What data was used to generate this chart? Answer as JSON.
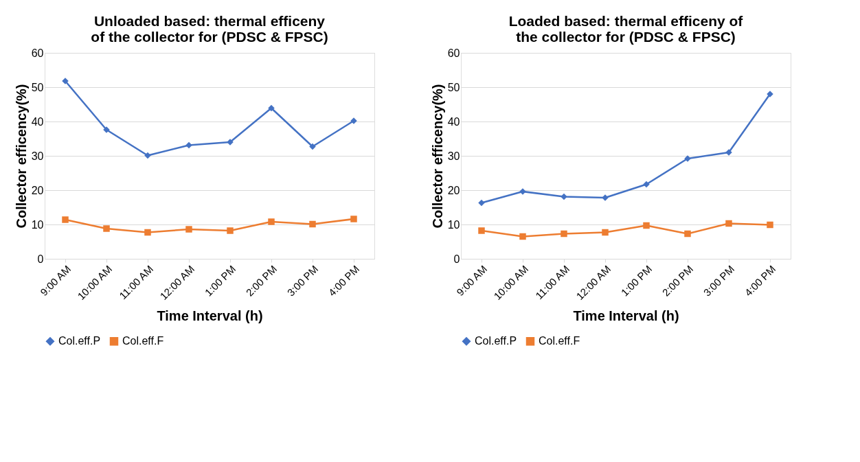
{
  "chart_data": [
    {
      "type": "line",
      "title": "Unloaded based: thermal efficeny of the collector for (PDSC & FPSC)",
      "xlabel": "Time Interval (h)",
      "ylabel": "Collector  efficency(%)",
      "categories": [
        "9:00 AM",
        "10:00 AM",
        "11:00 AM",
        "12:00 AM",
        "1:00 PM",
        "2:00 PM",
        "3:00 PM",
        "4:00 PM"
      ],
      "series": [
        {
          "name": "Col.eff.P",
          "color": "#4472c4",
          "marker": "diamond",
          "values": [
            51.8,
            37.6,
            30.1,
            33.1,
            34.0,
            43.9,
            32.7,
            40.2
          ]
        },
        {
          "name": "Col.eff.F",
          "color": "#ed7d31",
          "marker": "square",
          "values": [
            11.4,
            8.8,
            7.7,
            8.6,
            8.2,
            10.8,
            10.1,
            11.6
          ]
        }
      ],
      "ylim": [
        0,
        60
      ],
      "yticks": [
        0,
        10,
        20,
        30,
        40,
        50,
        60
      ],
      "grid": "y",
      "legend": "bottom",
      "line_style": "solid"
    },
    {
      "type": "line",
      "title": "Loaded based:  thermal efficeny of the collector for (PDSC & FPSC)",
      "xlabel": "Time Interval (h)",
      "ylabel": "Collector  efficency(%)",
      "categories": [
        "9:00 AM",
        "10:00 AM",
        "11:00 AM",
        "12:00 AM",
        "1:00 PM",
        "2:00 PM",
        "3:00 PM",
        "4:00 PM"
      ],
      "series": [
        {
          "name": "Col.eff.P",
          "color": "#4472c4",
          "marker": "diamond",
          "values": [
            16.3,
            19.6,
            18.1,
            17.8,
            21.7,
            29.2,
            31.0,
            48.0
          ]
        },
        {
          "name": "Col.eff.F",
          "color": "#ed7d31",
          "marker": "square",
          "values": [
            8.2,
            6.5,
            7.3,
            7.7,
            9.7,
            7.3,
            10.3,
            9.9
          ]
        }
      ],
      "ylim": [
        0,
        60
      ],
      "yticks": [
        0,
        10,
        20,
        30,
        40,
        50,
        60
      ],
      "grid": "y",
      "legend": "bottom",
      "line_style": "solid"
    }
  ]
}
